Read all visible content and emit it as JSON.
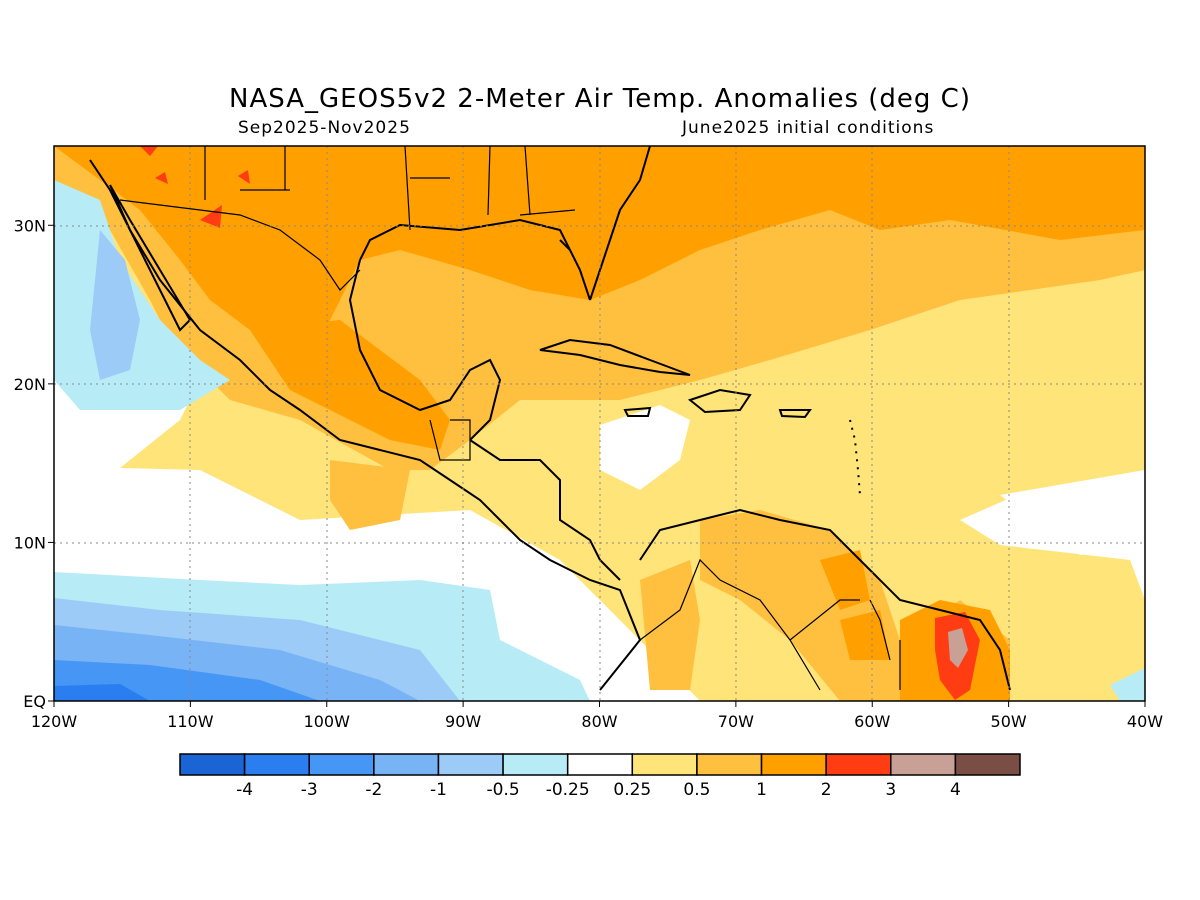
{
  "title": "NASA_GEOS5v2 2-Meter Air Temp. Anomalies (deg C)",
  "period": "Sep2025-Nov2025",
  "initial_conditions": "June2025 initial conditions",
  "map": {
    "lon_range": [
      -120,
      -40
    ],
    "lat_range": [
      0,
      35
    ],
    "lon_ticks": [
      {
        "value": -120,
        "label": "120W"
      },
      {
        "value": -110,
        "label": "110W"
      },
      {
        "value": -100,
        "label": "100W"
      },
      {
        "value": -90,
        "label": "90W"
      },
      {
        "value": -80,
        "label": "80W"
      },
      {
        "value": -70,
        "label": "70W"
      },
      {
        "value": -60,
        "label": "60W"
      },
      {
        "value": -50,
        "label": "50W"
      },
      {
        "value": -40,
        "label": "40W"
      }
    ],
    "lat_ticks": [
      {
        "value": 0,
        "label": "EQ"
      },
      {
        "value": 10,
        "label": "10N"
      },
      {
        "value": 20,
        "label": "20N"
      },
      {
        "value": 30,
        "label": "30N"
      }
    ],
    "grid": true
  },
  "colorbar": {
    "colors": [
      "#1a64d6",
      "#2a7ef0",
      "#4596f5",
      "#78b4f5",
      "#9dcbf7",
      "#b7ecf7",
      "#ffffff",
      "#ffe47a",
      "#ffbf3f",
      "#ffa000",
      "#ff3c12",
      "#c8a096",
      "#7a4e44"
    ],
    "labels": [
      "-4",
      "-3",
      "-2",
      "-1",
      "-0.5",
      "-0.25",
      "0.25",
      "0.5",
      "1",
      "2",
      "3",
      "4"
    ]
  }
}
